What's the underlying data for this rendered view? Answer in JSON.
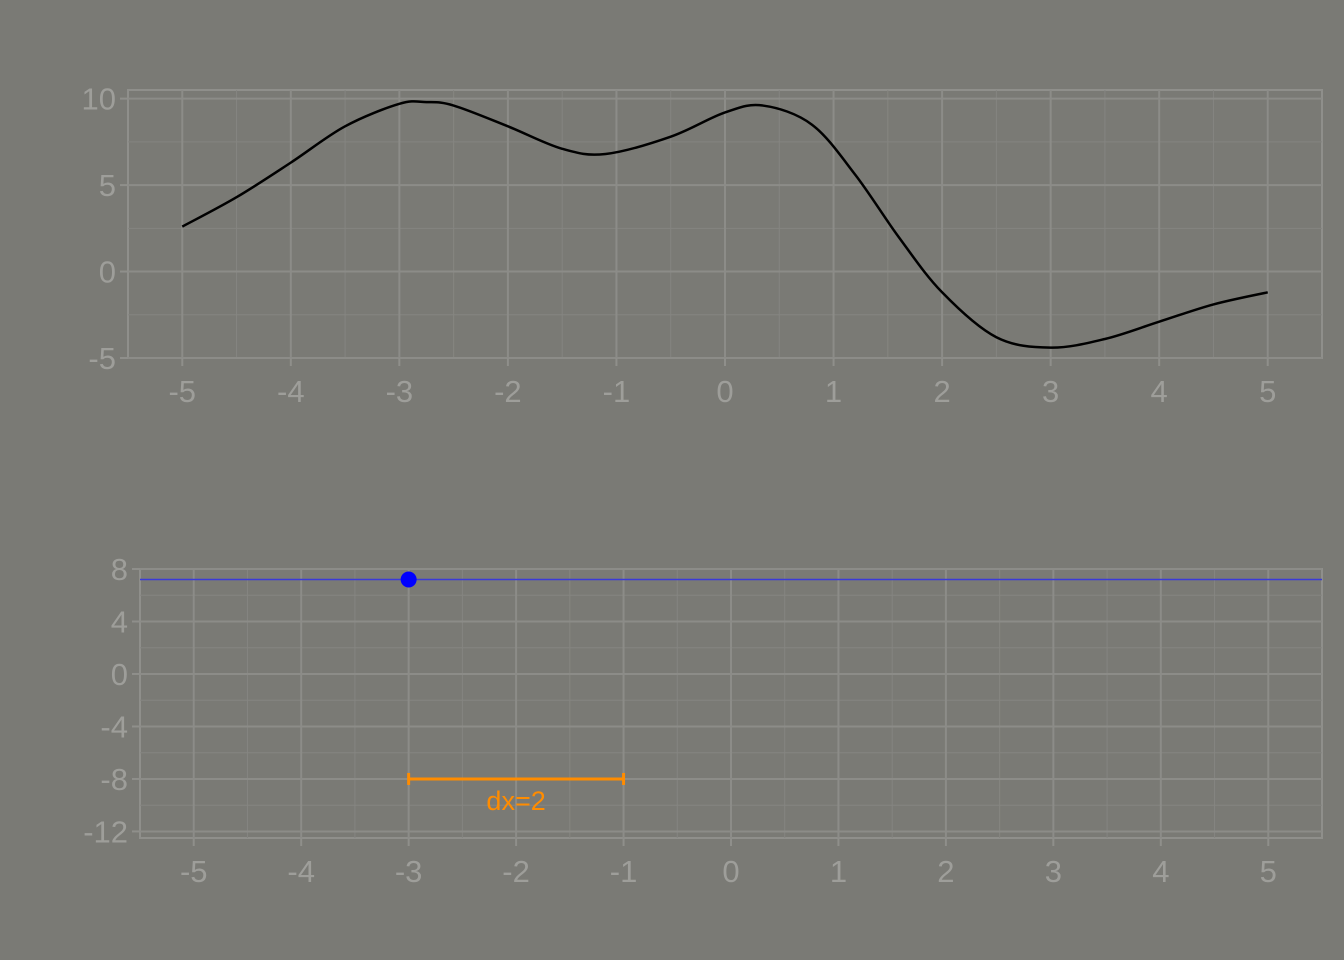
{
  "chart_data": [
    {
      "type": "line",
      "title": "",
      "xlabel": "",
      "ylabel": "",
      "xlim": [
        -5.5,
        5.5
      ],
      "ylim": [
        -5,
        10.5
      ],
      "x_ticks": [
        -5,
        -4,
        -3,
        -2,
        -1,
        0,
        1,
        2,
        3,
        4,
        5
      ],
      "y_ticks": [
        -5,
        0,
        5,
        10
      ],
      "x_tick_labels": [
        "-5",
        "-4",
        "-3",
        "-2",
        "-1",
        "0",
        "1",
        "2",
        "3",
        "4",
        "5"
      ],
      "y_tick_labels": [
        "-5",
        "0",
        "5",
        "10"
      ],
      "grid": true,
      "series": [
        {
          "color": "#000000",
          "x": [
            -5,
            -4.5,
            -4,
            -3.5,
            -3,
            -2.75,
            -2.5,
            -2,
            -1.5,
            -1.1,
            -0.5,
            0,
            0.35,
            0.8,
            1.2,
            1.6,
            2,
            2.5,
            3,
            3.5,
            4,
            4.5,
            5
          ],
          "y": [
            2.6,
            4.3,
            6.3,
            8.4,
            9.7,
            9.8,
            9.6,
            8.4,
            7.1,
            6.8,
            7.8,
            9.2,
            9.6,
            8.5,
            5.6,
            2.0,
            -1.2,
            -3.8,
            -4.4,
            -3.9,
            -2.9,
            -1.9,
            -1.2
          ]
        }
      ]
    },
    {
      "type": "line",
      "title": "",
      "xlabel": "",
      "ylabel": "",
      "xlim": [
        -5.5,
        5.5
      ],
      "ylim": [
        -12.5,
        8
      ],
      "x_ticks": [
        -5,
        -4,
        -3,
        -2,
        -1,
        0,
        1,
        2,
        3,
        4,
        5
      ],
      "y_ticks": [
        -12,
        -8,
        -4,
        0,
        4,
        8
      ],
      "x_tick_labels": [
        "-5",
        "-4",
        "-3",
        "-2",
        "-1",
        "0",
        "1",
        "2",
        "3",
        "4",
        "5"
      ],
      "y_tick_labels": [
        "-12",
        "-8",
        "-4",
        "0",
        "4",
        "8"
      ],
      "grid": true,
      "series": [
        {
          "color": "#3a3ad8",
          "x": [
            -5.5,
            5.5
          ],
          "y": [
            7.2,
            7.2
          ]
        }
      ],
      "point": {
        "x": -3,
        "y": 7.2,
        "color": "#0000ff"
      },
      "interval": {
        "x1": -3,
        "x2": -1,
        "y": -8,
        "color": "#ff8c00",
        "label": "dx=2"
      }
    }
  ]
}
